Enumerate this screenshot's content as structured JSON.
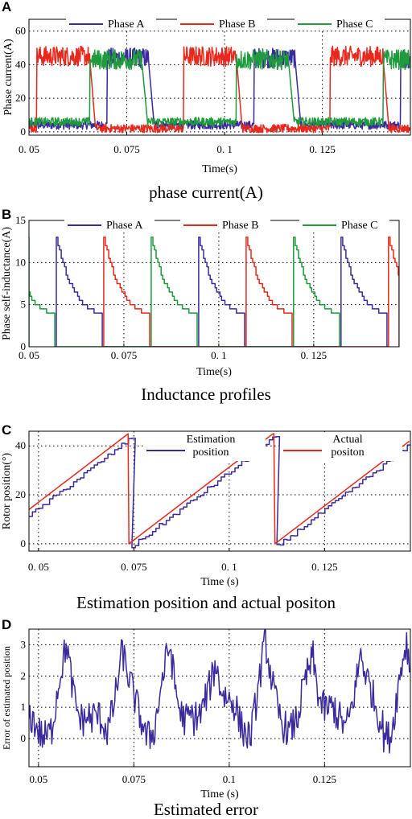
{
  "colors": {
    "phase_a": "#3a2a9c",
    "phase_b": "#e8281c",
    "phase_c": "#1f9a3c",
    "axis": "#000000"
  },
  "chart_data": [
    {
      "panel": "A",
      "type": "line",
      "caption": "phase current(A)",
      "xlabel": "Time(s)",
      "ylabel": "Phase current(A)",
      "xlim": [
        0.05,
        0.1475
      ],
      "ylim": [
        -2,
        67
      ],
      "xticks": [
        0.05,
        0.075,
        0.1,
        0.125
      ],
      "xtick_labels": [
        "0. 05",
        "0. 075",
        "0. 1",
        "0. 125"
      ],
      "yticks": [
        0,
        20,
        40,
        60
      ],
      "ytick_labels": [
        "0",
        "20",
        "40",
        "60"
      ],
      "grid": true,
      "legend": [
        "Phase A",
        "Phase B",
        "Phase C"
      ],
      "legend_position": "top",
      "period_s": 0.0375,
      "series": [
        {
          "name": "Phase A",
          "kind": "square",
          "high": 44,
          "low": 4,
          "on_start": 0.07,
          "on_end": 0.0805
        },
        {
          "name": "Phase B",
          "kind": "square",
          "high": 45,
          "low": 2,
          "on_start": 0.0895,
          "on_end": 0.103
        },
        {
          "name": "Phase C",
          "kind": "square",
          "high": 43,
          "low": 6,
          "on_start": 0.0655,
          "on_end": 0.0788
        }
      ]
    },
    {
      "panel": "B",
      "type": "line",
      "caption": "Inductance profiles",
      "xlabel": "Time(s)",
      "ylabel": "Phase self-inductance(A)",
      "xlim": [
        0.05,
        0.1475
      ],
      "ylim": [
        0,
        15
      ],
      "xticks": [
        0.05,
        0.075,
        0.1,
        0.125
      ],
      "xtick_labels": [
        "0. 05",
        "0. 075",
        "0. 1",
        "0. 125"
      ],
      "yticks": [
        0,
        5,
        10,
        15
      ],
      "ytick_labels": [
        "0",
        "5",
        "10",
        "15"
      ],
      "grid": true,
      "legend": [
        "Phase A",
        "Phase B",
        "Phase C"
      ],
      "legend_position": "top",
      "period_s": 0.0375,
      "series": [
        {
          "name": "Phase A",
          "kind": "decay",
          "rise": 0.0572,
          "end": 0.0693,
          "top": 13,
          "bottom": 3.7
        },
        {
          "name": "Phase B",
          "kind": "decay",
          "rise": 0.0697,
          "end": 0.0818,
          "top": 13,
          "bottom": 3.7
        },
        {
          "name": "Phase C",
          "kind": "decay",
          "rise": 0.0822,
          "end": 0.0943,
          "top": 13,
          "bottom": 3.7
        }
      ]
    },
    {
      "panel": "C",
      "type": "line",
      "caption": "Estimation position and actual positon",
      "xlabel": "Time  (s)",
      "ylabel": "Rotor position(°)",
      "xlim": [
        0.0475,
        0.1475
      ],
      "ylim": [
        -3,
        46
      ],
      "xticks": [
        0.05,
        0.075,
        0.1,
        0.125
      ],
      "xtick_labels": [
        "0. 05",
        "0. 075",
        "0. 1",
        "0. 125"
      ],
      "yticks": [
        0,
        20,
        40
      ],
      "ytick_labels": [
        "0",
        "20",
        "40"
      ],
      "grid": true,
      "legend": [
        "Estimation position",
        "Actual positon"
      ],
      "legend_position": "top-right",
      "series": [
        {
          "name": "Estimation position",
          "kind": "sawtooth",
          "resets": [
            0.0745,
            0.1125
          ],
          "start": [
            0.0475,
            12.5
          ],
          "top": 44,
          "step": true
        },
        {
          "name": "Actual positon",
          "kind": "sawtooth",
          "resets": [
            0.0737,
            0.112
          ],
          "start": [
            0.0475,
            14
          ],
          "top": 45,
          "step": false
        }
      ]
    },
    {
      "panel": "D",
      "type": "line",
      "caption": "Estimated error",
      "xlabel": "Time  (s)",
      "ylabel": "Error of estimated position",
      "xlim": [
        0.0475,
        0.1475
      ],
      "ylim": [
        -0.9,
        3.5
      ],
      "xticks": [
        0.05,
        0.075,
        0.1,
        0.125
      ],
      "xtick_labels": [
        "0.05",
        "0.075",
        "0.1",
        "0.125"
      ],
      "yticks": [
        0,
        1,
        2,
        3
      ],
      "ytick_labels": [
        "0",
        "1",
        "2",
        "3"
      ],
      "grid": true,
      "series": [
        {
          "name": "Error",
          "kind": "noise",
          "period": 0.0125,
          "peaks": [
            0.0575,
            0.072,
            0.0845,
            0.0965,
            0.1095,
            0.122,
            0.1345,
            0.1465
          ],
          "baseline": 0.4,
          "amplitude": 2.4
        }
      ]
    }
  ]
}
